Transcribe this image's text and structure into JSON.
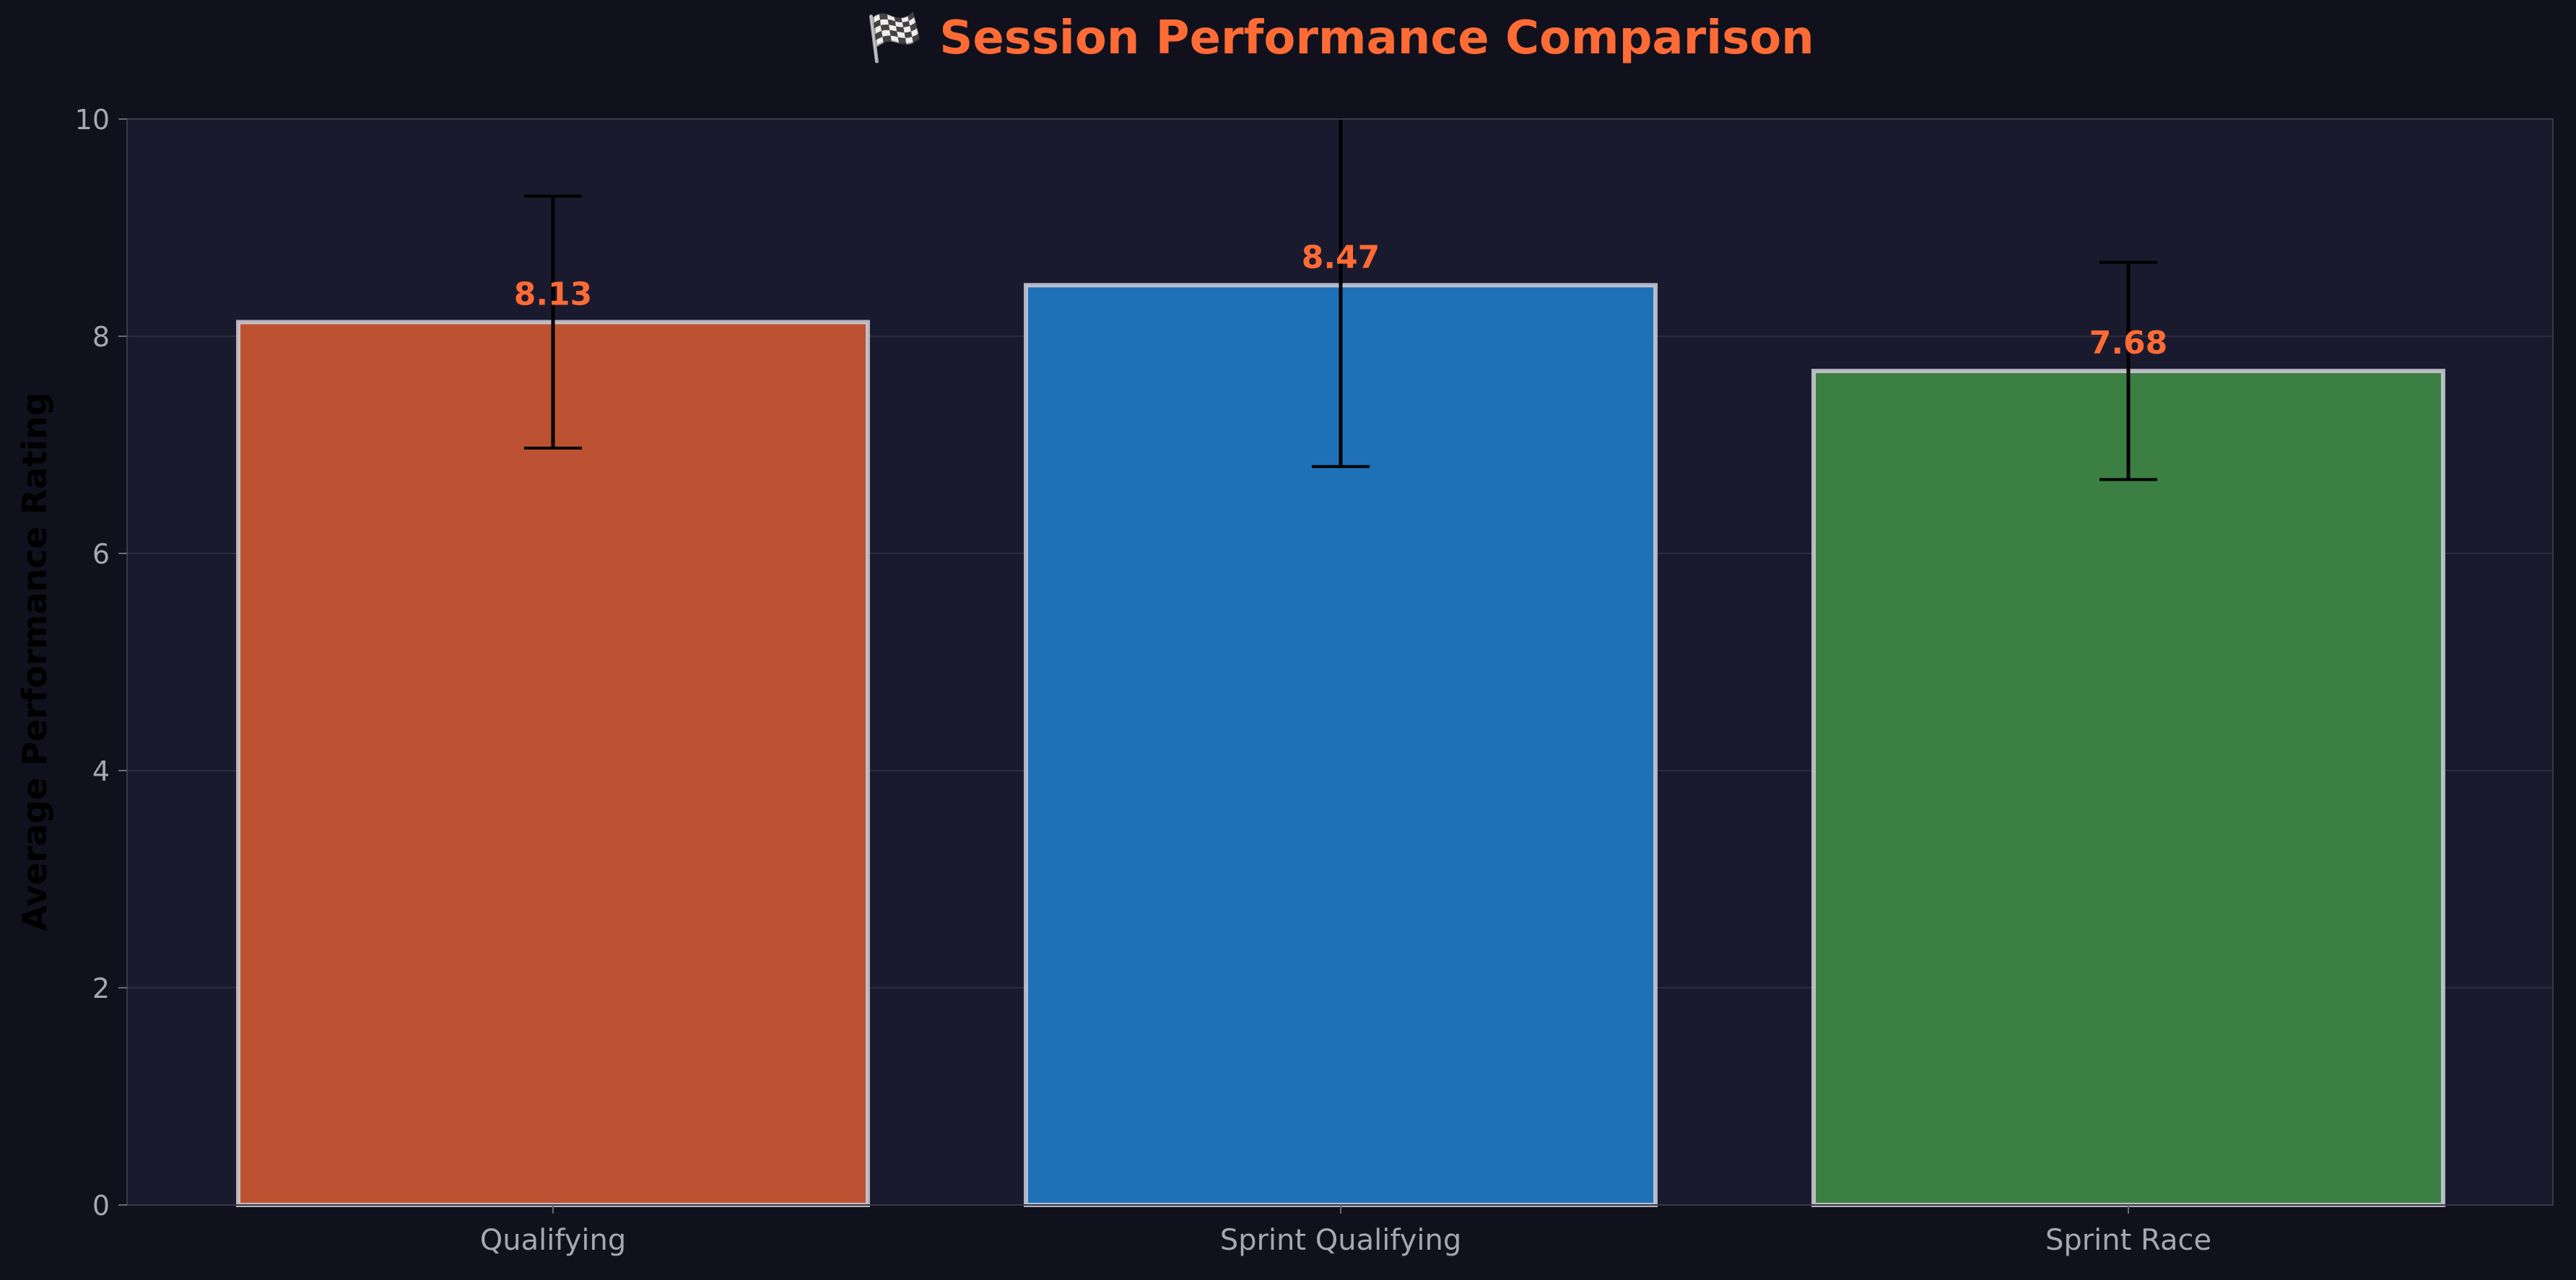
{
  "chart_data": {
    "type": "bar",
    "title": "🏁 Session Performance Comparison",
    "xlabel": "",
    "ylabel": "Average Performance Rating",
    "categories": [
      "Qualifying",
      "Sprint Qualifying",
      "Sprint Race"
    ],
    "values": [
      8.13,
      8.47,
      7.68
    ],
    "value_labels": [
      "8.13",
      "8.47",
      "7.68"
    ],
    "error_bars": [
      {
        "low": 6.97,
        "high": 9.29
      },
      {
        "low": 6.8,
        "high": 10.0
      },
      {
        "low": 6.68,
        "high": 8.68
      }
    ],
    "ylim": [
      0,
      10
    ],
    "yticks": [
      0,
      2,
      4,
      6,
      8,
      10
    ],
    "ytick_labels": [
      "0",
      "2",
      "4",
      "6",
      "8",
      "10"
    ],
    "grid": true,
    "legend": "none",
    "colors": {
      "background": "#11111d",
      "plot_background": "#1a1a2e",
      "title": "#ff6b35",
      "value_label": "#ff6b35",
      "tick_label": "#a7a7b3",
      "axis_label": "#000000",
      "bar_edge": "#d0d0d8",
      "error_bar": "#000000",
      "bars": [
        "#bc5232",
        "#1e71b7",
        "#3b7f43"
      ]
    }
  }
}
